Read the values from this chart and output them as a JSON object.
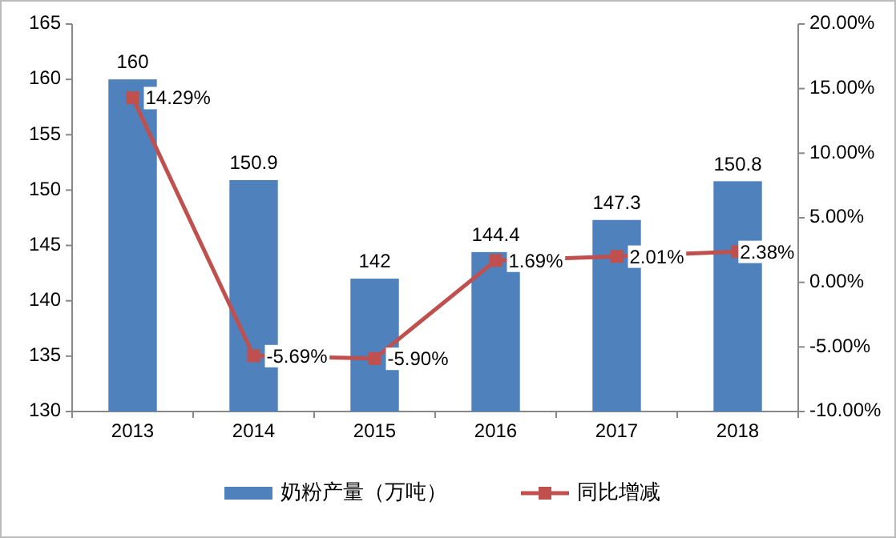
{
  "chart_data": {
    "type": "bar",
    "categories": [
      "2013",
      "2014",
      "2015",
      "2016",
      "2017",
      "2018"
    ],
    "series": [
      {
        "name": "奶粉产量（万吨）",
        "color": "#4f81bd",
        "values": [
          160,
          150.9,
          142,
          144.4,
          147.3,
          150.8
        ],
        "value_labels": [
          "160",
          "150.9",
          "142",
          "144.4",
          "147.3",
          "150.8"
        ]
      },
      {
        "name": "同比增减",
        "type": "line",
        "axis": "y2",
        "color": "#c0504d",
        "marker": "square",
        "values": [
          14.29,
          -5.69,
          -5.9,
          1.69,
          2.01,
          2.38
        ],
        "value_labels": [
          "14.29%",
          "-5.69%",
          "-5.90%",
          "1.69%",
          "2.01%",
          "2.38%"
        ]
      }
    ],
    "ylim": [
      130,
      165
    ],
    "yticks": [
      130,
      135,
      140,
      145,
      150,
      155,
      160,
      165
    ],
    "y2lim": [
      -10,
      20
    ],
    "y2ticks": [
      {
        "value": -10,
        "label": "-10.00%"
      },
      {
        "value": -5,
        "label": "-5.00%"
      },
      {
        "value": 0,
        "label": "0.00%"
      },
      {
        "value": 5,
        "label": "5.00%"
      },
      {
        "value": 10,
        "label": "10.00%"
      },
      {
        "value": 15,
        "label": "15.00%"
      },
      {
        "value": 20,
        "label": "20.00%"
      }
    ],
    "legend": "bottom",
    "grid": false
  }
}
